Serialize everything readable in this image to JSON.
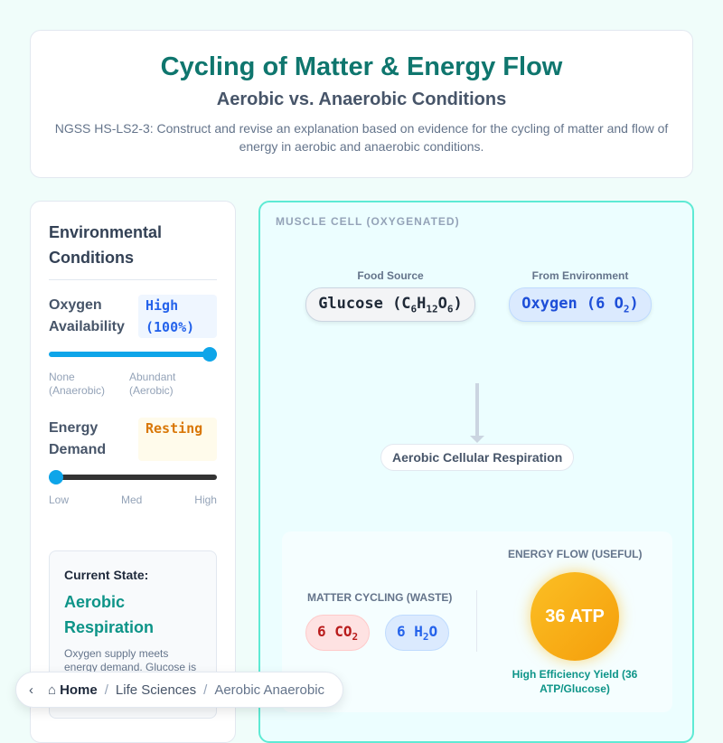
{
  "header": {
    "title": "Cycling of Matter & Energy Flow",
    "subtitle": "Aerobic vs. Anaerobic Conditions",
    "standard": "NGSS HS-LS2-3: Construct and revise an explanation based on evidence for the cycling of matter and flow of energy in aerobic and anaerobic conditions."
  },
  "controls": {
    "title": "Environmental Conditions",
    "oxygen": {
      "label": "Oxygen Availability",
      "value": "High (100%)",
      "level": 1.0,
      "min_label": "None (Anaerobic)",
      "max_label": "Abundant (Aerobic)"
    },
    "energy": {
      "label": "Energy Demand",
      "value": "Resting",
      "level": 0.0,
      "ticks": [
        "Low",
        "Med",
        "High"
      ]
    },
    "state": {
      "title": "Current State:",
      "value": "Aerobic Respiration",
      "desc": "Oxygen supply meets energy demand. Glucose is"
    }
  },
  "cell": {
    "caption": "MUSCLE CELL (OXYGENATED)",
    "food": {
      "label": "Food Source",
      "text": "Glucose (C",
      "s1": "6",
      "t2": "H",
      "s2": "12",
      "t3": "O",
      "s3": "6",
      "t4": ")"
    },
    "oxygen": {
      "label": "From Environment",
      "text": "Oxygen (6 O",
      "s1": "2",
      "t2": ")"
    },
    "process": "Aerobic Cellular Respiration",
    "matter": {
      "label": "MATTER CYCLING (WASTE)",
      "co2": {
        "a": "6 CO",
        "s": "2"
      },
      "h2o": {
        "a": "6 H",
        "s": "2",
        "b": "O"
      }
    },
    "energy": {
      "label": "ENERGY FLOW (USEFUL)",
      "atp": "36 ATP",
      "yield": "High Efficiency Yield (36 ATP/Glucose)"
    }
  },
  "breadcrumb": {
    "items": [
      "Home",
      "Life Sciences",
      "Aerobic Anaerobic"
    ]
  }
}
